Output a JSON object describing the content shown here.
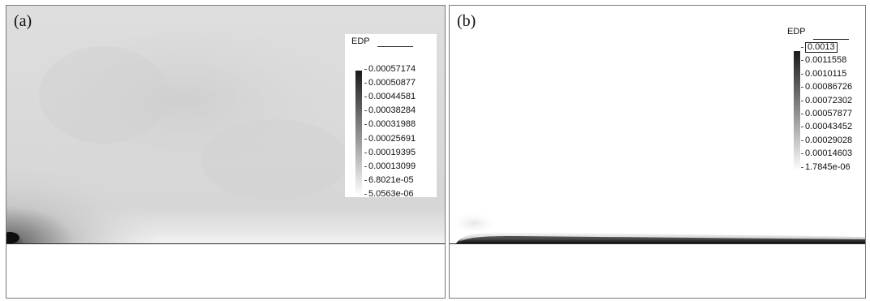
{
  "panels": [
    {
      "label": "(a)",
      "legend": {
        "title": "EDP",
        "values": [
          "0.00057174",
          "0.00050877",
          "0.00044581",
          "0.00038284",
          "0.00031988",
          "0.00025691",
          "0.00019395",
          "0.00013099",
          "6.8021e-05",
          "5.0563e-06"
        ]
      }
    },
    {
      "label": "(b)",
      "legend": {
        "title": "EDP",
        "values": [
          "0.0013",
          "0.0011558",
          "0.0010115",
          "0.00086726",
          "0.00072302",
          "0.00057877",
          "0.00043452",
          "0.00029028",
          "0.00014603",
          "1.7845e-06"
        ],
        "highlighted_value": "0.0013"
      }
    }
  ],
  "colors": {
    "scale_dark": "#1a1a1a",
    "scale_light": "#ffffff",
    "field_a_background": "#d9d9d9",
    "field_b_background": "#ffffff"
  }
}
